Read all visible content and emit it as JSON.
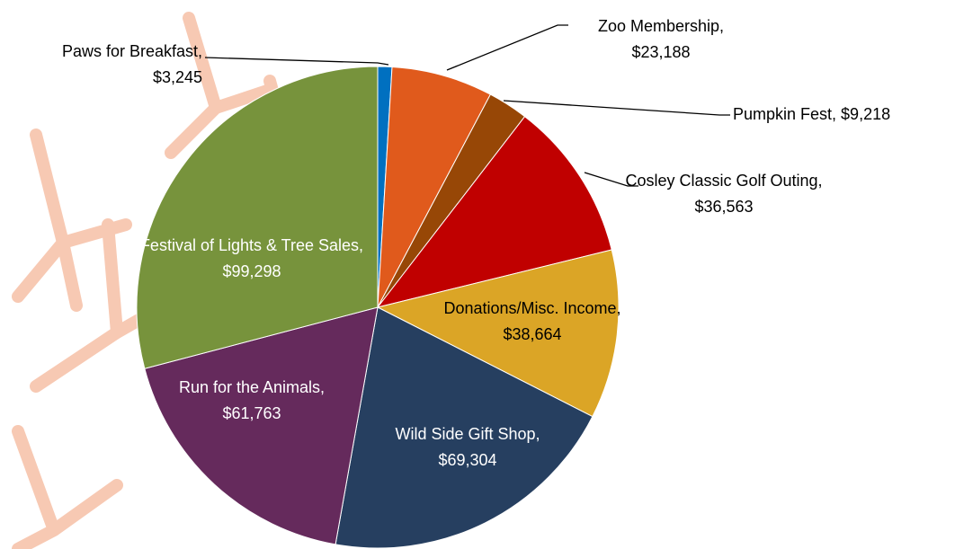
{
  "chart_data": {
    "type": "pie",
    "categories": [
      "Paws for Breakfast,",
      "Zoo Membership,",
      "Pumpkin Fest,",
      "Cosley Classic Golf Outing,",
      "Donations/Misc. Income,",
      "Wild Side Gift Shop,",
      "Run for the Animals,",
      "Festival of Lights & Tree Sales,"
    ],
    "values": [
      3245,
      23188,
      9218,
      36563,
      38664,
      69304,
      61763,
      99298
    ],
    "value_labels": [
      "$3,245",
      "$23,188",
      "$9,218",
      "$36,563",
      "$38,664",
      "$69,304",
      "$61,763",
      "$99,298"
    ],
    "colors": [
      "#0070c0",
      "#e05a1c",
      "#974706",
      "#c00000",
      "#dba526",
      "#263f60",
      "#652a5c",
      "#77933c"
    ]
  }
}
